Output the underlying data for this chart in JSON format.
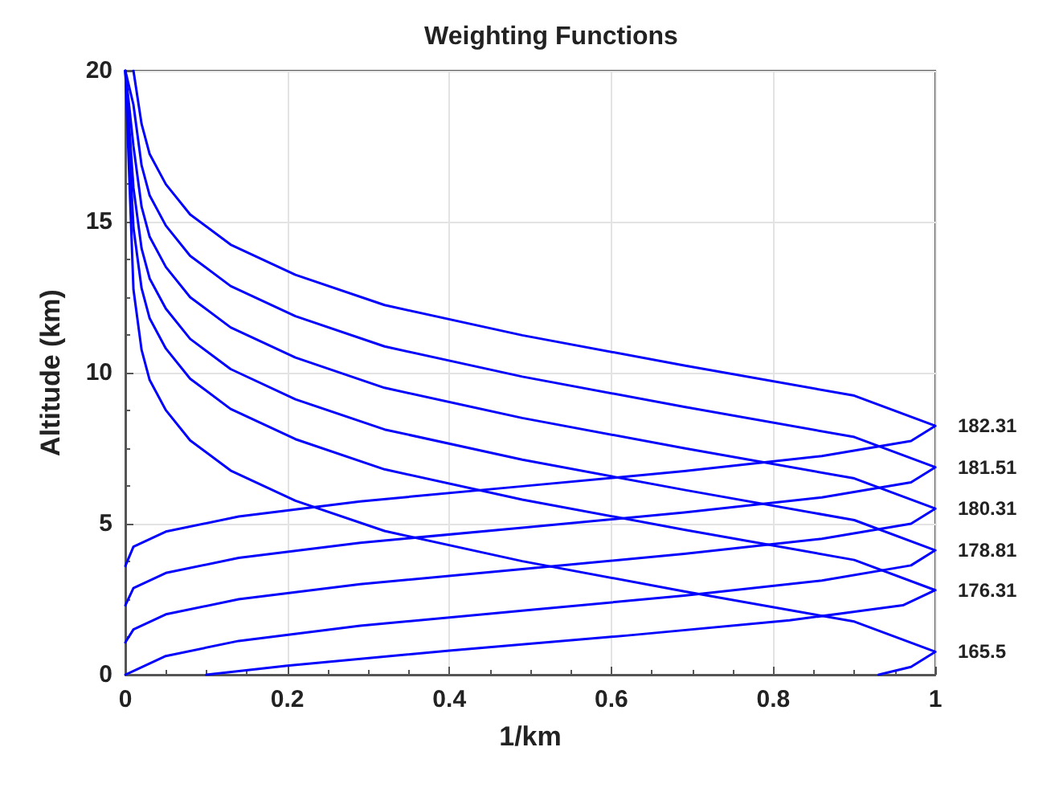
{
  "chart_data": {
    "type": "line",
    "title": "Weighting Functions",
    "xlabel": "1/km",
    "ylabel": "Altitude (km)",
    "xlim": [
      0,
      1
    ],
    "ylim": [
      0,
      20
    ],
    "xticks": [
      0,
      0.2,
      0.4,
      0.6,
      0.8,
      1
    ],
    "yticks": [
      0,
      5,
      10,
      15,
      20
    ],
    "grid": true,
    "line_style": "solid",
    "series": [
      {
        "name": "182.31",
        "color": "#0000ff",
        "x": [
          0,
          0.01,
          0.05,
          0.14,
          0.29,
          0.49,
          0.69,
          0.86,
          0.97,
          1,
          0.9,
          0.69,
          0.49,
          0.32,
          0.21,
          0.13,
          0.08,
          0.05,
          0.03,
          0.02,
          0.01
        ],
        "values": [
          3.6,
          4.24,
          4.74,
          5.24,
          5.74,
          6.24,
          6.74,
          7.24,
          7.74,
          8.24,
          9.24,
          10.24,
          11.24,
          12.24,
          13.24,
          14.24,
          15.24,
          16.24,
          17.24,
          18.24,
          20
        ]
      },
      {
        "name": "181.51",
        "color": "#0000ff",
        "x": [
          0,
          0.01,
          0.05,
          0.14,
          0.29,
          0.49,
          0.69,
          0.86,
          0.97,
          1,
          0.9,
          0.69,
          0.49,
          0.32,
          0.21,
          0.13,
          0.08,
          0.05,
          0.03,
          0.02,
          0.01,
          0
        ],
        "values": [
          2.3,
          2.87,
          3.37,
          3.87,
          4.37,
          4.87,
          5.37,
          5.87,
          6.37,
          6.87,
          7.87,
          8.87,
          9.87,
          10.87,
          11.87,
          12.87,
          13.87,
          14.87,
          15.87,
          16.87,
          18.87,
          20
        ]
      },
      {
        "name": "180.31",
        "color": "#0000ff",
        "x": [
          0,
          0.01,
          0.05,
          0.14,
          0.29,
          0.49,
          0.69,
          0.86,
          0.97,
          1,
          0.9,
          0.69,
          0.49,
          0.32,
          0.21,
          0.13,
          0.08,
          0.05,
          0.03,
          0.02,
          0.01,
          0
        ],
        "values": [
          1.07,
          1.5,
          2,
          2.5,
          3,
          3.5,
          4,
          4.5,
          5,
          5.5,
          6.5,
          7.5,
          8.5,
          9.5,
          10.5,
          11.5,
          12.5,
          13.5,
          14.5,
          15.5,
          17.5,
          20
        ]
      },
      {
        "name": "178.81",
        "color": "#0000ff",
        "x": [
          0,
          0.01,
          0.05,
          0.14,
          0.29,
          0.49,
          0.69,
          0.86,
          0.97,
          1,
          0.9,
          0.69,
          0.49,
          0.32,
          0.21,
          0.13,
          0.08,
          0.05,
          0.03,
          0.02,
          0.01,
          0
        ],
        "values": [
          0,
          0.12,
          0.62,
          1.12,
          1.62,
          2.12,
          2.62,
          3.12,
          3.62,
          4.12,
          5.12,
          6.12,
          7.12,
          8.12,
          9.12,
          10.12,
          11.12,
          12.12,
          13.12,
          14.12,
          16.12,
          20
        ]
      },
      {
        "name": "176.31",
        "color": "#0000ff",
        "x": [
          0.1,
          0.2,
          0.4,
          0.62,
          0.82,
          0.96,
          1,
          0.9,
          0.69,
          0.49,
          0.32,
          0.21,
          0.13,
          0.08,
          0.05,
          0.03,
          0.02,
          0.01,
          0
        ],
        "values": [
          0,
          0.3,
          0.8,
          1.3,
          1.8,
          2.3,
          2.8,
          3.8,
          4.8,
          5.8,
          6.8,
          7.8,
          8.8,
          9.8,
          10.8,
          11.8,
          12.8,
          14.8,
          20
        ]
      },
      {
        "name": "165.5",
        "color": "#0000ff",
        "x": [
          0.93,
          0.97,
          1,
          0.9,
          0.69,
          0.49,
          0.32,
          0.21,
          0.13,
          0.08,
          0.05,
          0.03,
          0.02,
          0.01,
          0
        ],
        "values": [
          0,
          0.26,
          0.76,
          1.76,
          2.76,
          3.76,
          4.76,
          5.76,
          6.76,
          7.76,
          8.76,
          9.76,
          10.76,
          12.76,
          20
        ]
      }
    ]
  }
}
